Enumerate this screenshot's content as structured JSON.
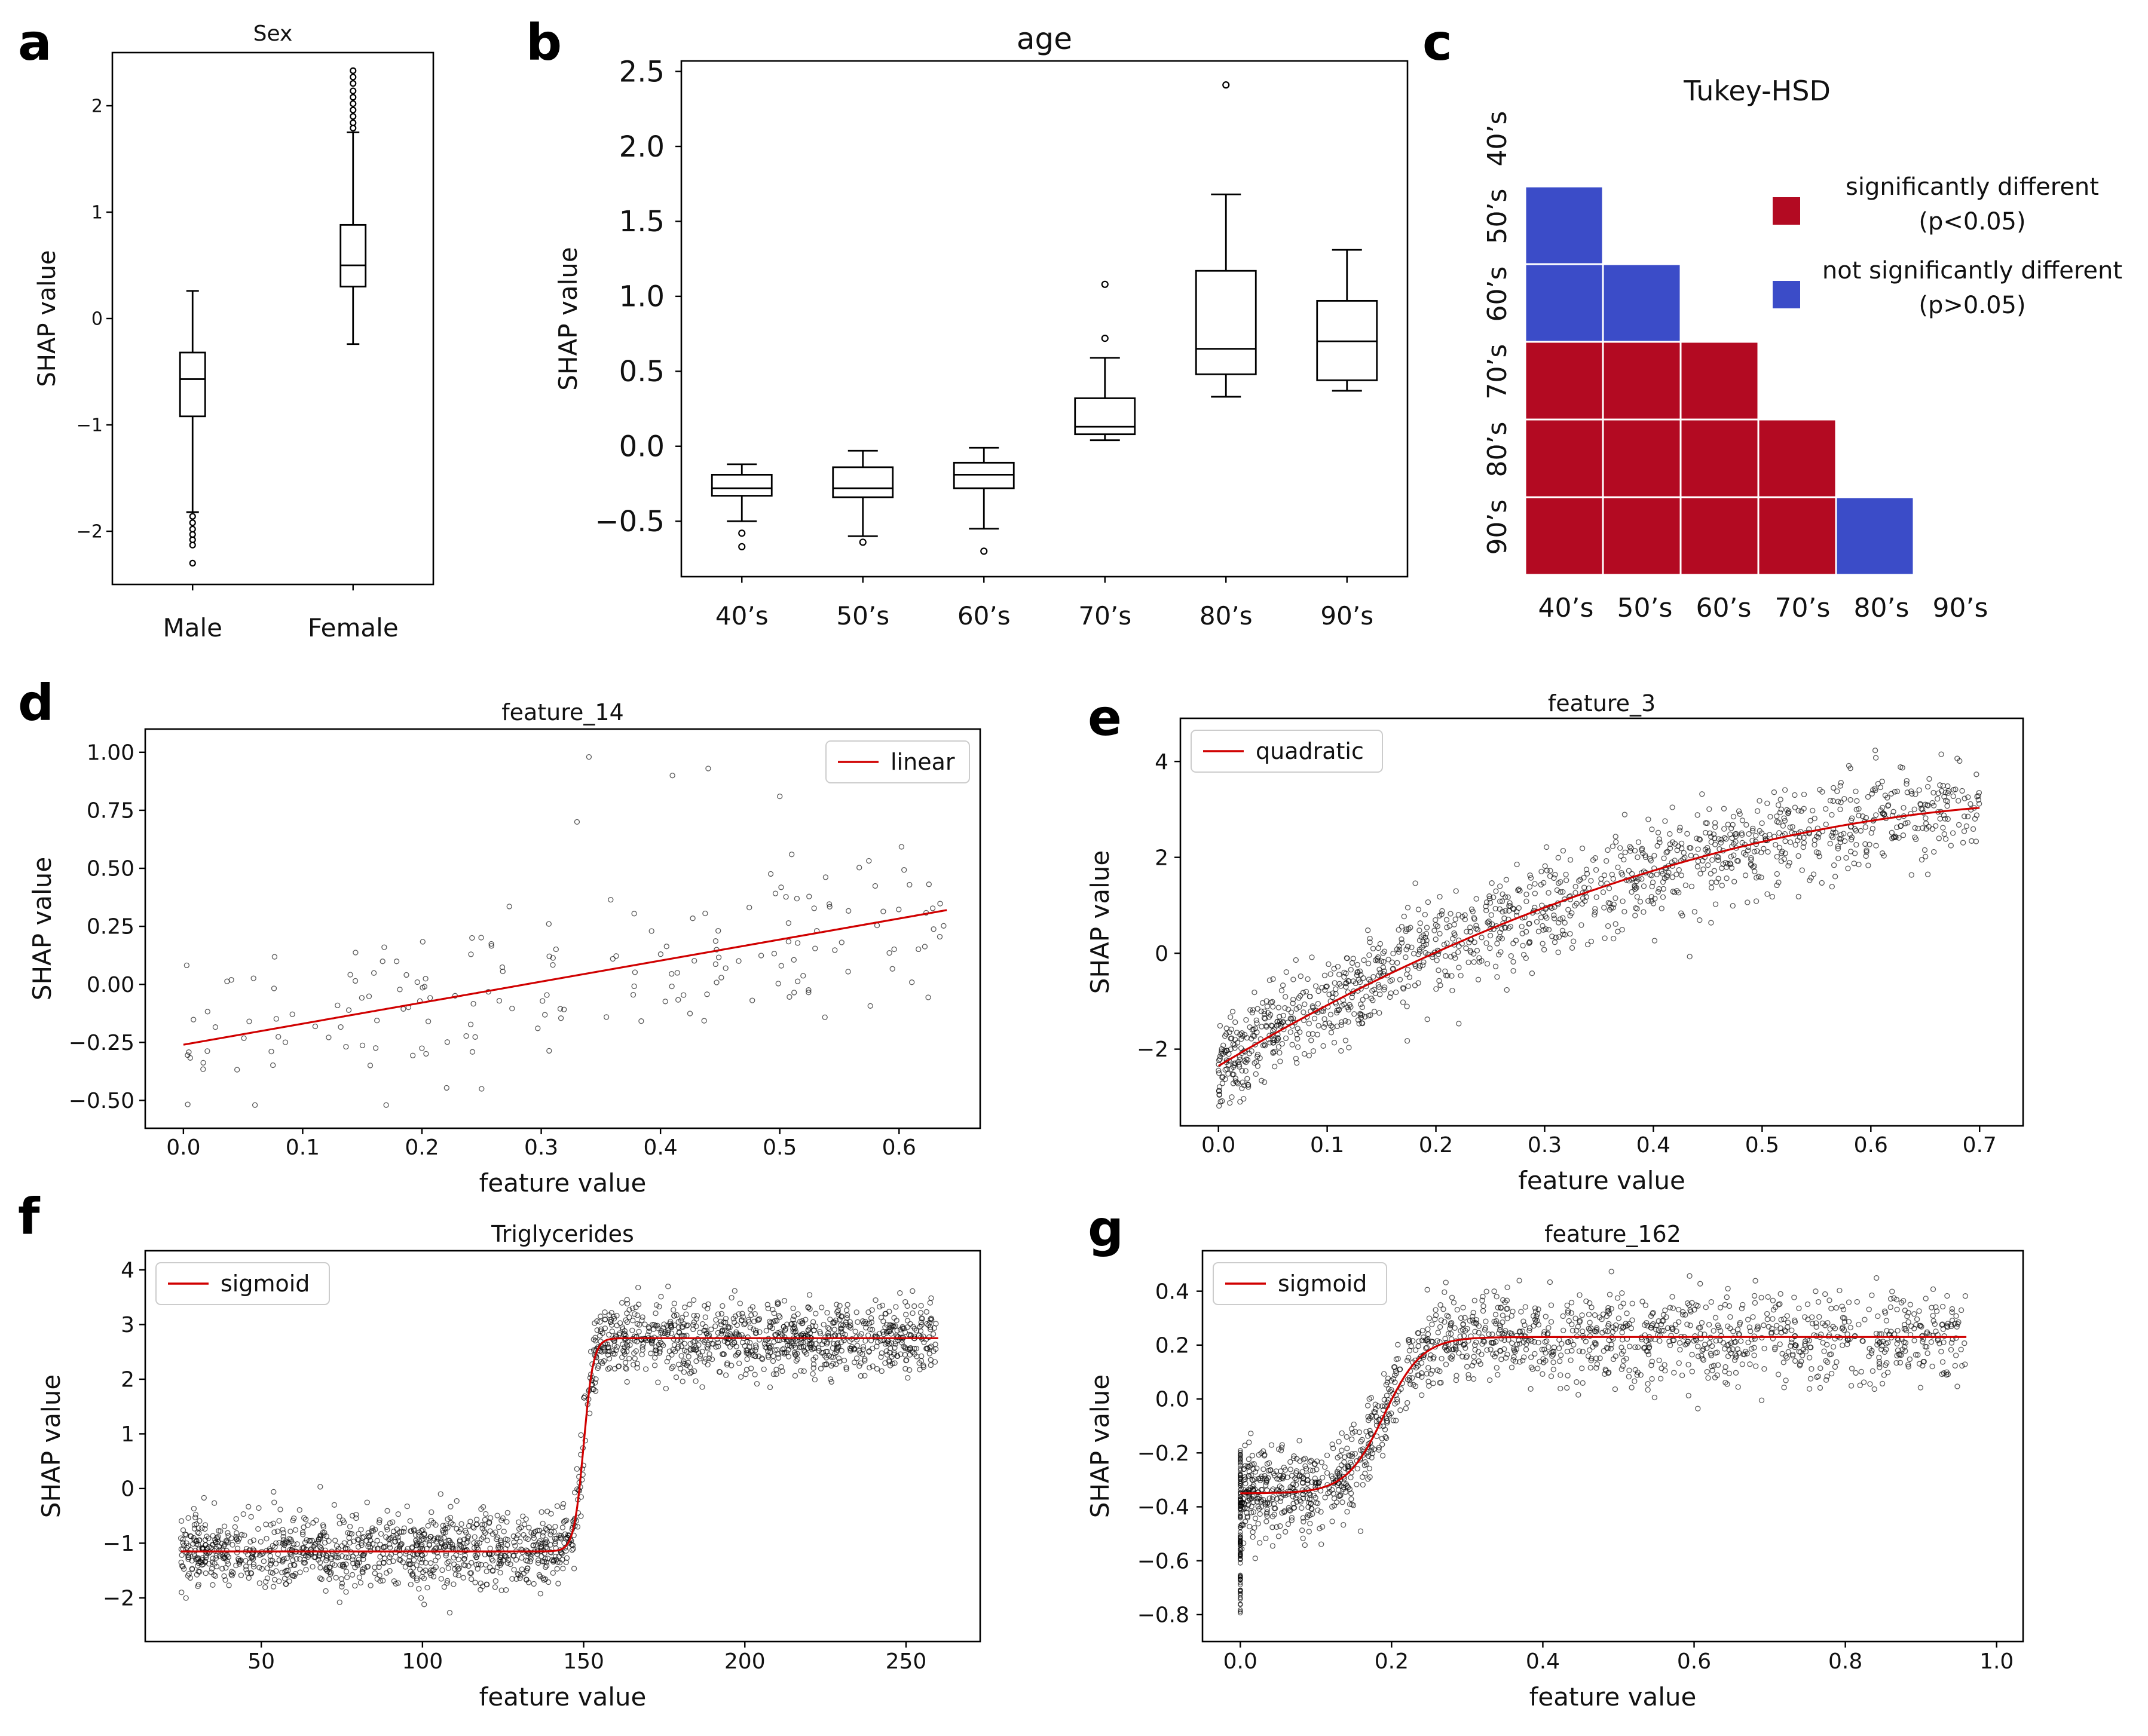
{
  "chart_data": [
    {
      "panel": "a",
      "type": "box",
      "title": "Sex",
      "ylabel": "SHAP value",
      "xlabel": "",
      "categories": [
        "Male",
        "Female"
      ],
      "ylim": [
        -2.5,
        2.5
      ],
      "yticks": [
        "−2",
        "−1",
        "0",
        "1",
        "2"
      ],
      "boxes": [
        {
          "category": "Male",
          "whisker_low": -1.82,
          "q1": -0.92,
          "median": -0.57,
          "q3": -0.32,
          "whisker_high": 0.26,
          "fliers": [
            -1.86,
            -1.92,
            -1.98,
            -2.03,
            -2.08,
            -2.13,
            -2.3
          ]
        },
        {
          "category": "Female",
          "whisker_low": -0.24,
          "q1": 0.3,
          "median": 0.5,
          "q3": 0.88,
          "whisker_high": 1.75,
          "fliers": [
            1.79,
            1.84,
            1.9,
            1.96,
            2.02,
            2.08,
            2.14,
            2.21,
            2.27,
            2.33
          ]
        }
      ]
    },
    {
      "panel": "b",
      "type": "box",
      "title": "age",
      "ylabel": "SHAP value",
      "xlabel": "",
      "categories": [
        "40’s",
        "50’s",
        "60’s",
        "70’s",
        "80’s",
        "90’s"
      ],
      "ylim": [
        -0.87,
        2.57
      ],
      "yticks": [
        "−0.5",
        "0.0",
        "0.5",
        "1.0",
        "1.5",
        "2.0",
        "2.5"
      ],
      "boxes": [
        {
          "category": "40’s",
          "whisker_low": -0.5,
          "q1": -0.33,
          "median": -0.28,
          "q3": -0.19,
          "whisker_high": -0.12,
          "fliers": [
            -0.58,
            -0.67
          ]
        },
        {
          "category": "50’s",
          "whisker_low": -0.6,
          "q1": -0.34,
          "median": -0.28,
          "q3": -0.14,
          "whisker_high": -0.03,
          "fliers": [
            -0.64
          ]
        },
        {
          "category": "60’s",
          "whisker_low": -0.55,
          "q1": -0.28,
          "median": -0.19,
          "q3": -0.11,
          "whisker_high": -0.01,
          "fliers": [
            -0.7
          ]
        },
        {
          "category": "70’s",
          "whisker_low": 0.04,
          "q1": 0.08,
          "median": 0.13,
          "q3": 0.32,
          "whisker_high": 0.59,
          "fliers": [
            0.72,
            1.08
          ]
        },
        {
          "category": "80’s",
          "whisker_low": 0.33,
          "q1": 0.48,
          "median": 0.65,
          "q3": 1.17,
          "whisker_high": 1.68,
          "fliers": [
            2.41
          ]
        },
        {
          "category": "90’s",
          "whisker_low": 0.37,
          "q1": 0.44,
          "median": 0.7,
          "q3": 0.97,
          "whisker_high": 1.31,
          "fliers": []
        }
      ]
    },
    {
      "panel": "c",
      "type": "heatmap",
      "title": "Tukey-HSD",
      "rows": [
        "40’s",
        "50’s",
        "60’s",
        "70’s",
        "80’s",
        "90’s"
      ],
      "columns": [
        "40’s",
        "50’s",
        "60’s",
        "70’s",
        "80’s",
        "90’s"
      ],
      "cells": [
        {
          "row": "50’s",
          "col": "40’s",
          "significant": false
        },
        {
          "row": "60’s",
          "col": "40’s",
          "significant": false
        },
        {
          "row": "60’s",
          "col": "50’s",
          "significant": false
        },
        {
          "row": "70’s",
          "col": "40’s",
          "significant": true
        },
        {
          "row": "70’s",
          "col": "50’s",
          "significant": true
        },
        {
          "row": "70’s",
          "col": "60’s",
          "significant": true
        },
        {
          "row": "80’s",
          "col": "40’s",
          "significant": true
        },
        {
          "row": "80’s",
          "col": "50’s",
          "significant": true
        },
        {
          "row": "80’s",
          "col": "60’s",
          "significant": true
        },
        {
          "row": "80’s",
          "col": "70’s",
          "significant": true
        },
        {
          "row": "90’s",
          "col": "40’s",
          "significant": true
        },
        {
          "row": "90’s",
          "col": "50’s",
          "significant": true
        },
        {
          "row": "90’s",
          "col": "60’s",
          "significant": true
        },
        {
          "row": "90’s",
          "col": "70’s",
          "significant": true
        },
        {
          "row": "90’s",
          "col": "80’s",
          "significant": false
        }
      ],
      "legend": [
        {
          "label": "significantly different",
          "sub": "(p<0.05)",
          "color": "#b30a22"
        },
        {
          "label": "not significantly different",
          "sub": "(p>0.05)",
          "color": "#3b4cc8"
        }
      ],
      "grid_color": "#ffffff"
    },
    {
      "panel": "d",
      "type": "scatter",
      "title": "feature_14",
      "xlabel": "feature value",
      "ylabel": "SHAP value",
      "xlim": [
        -0.032,
        0.668
      ],
      "ylim": [
        -0.62,
        1.1
      ],
      "xticks": [
        "0.0",
        "0.1",
        "0.2",
        "0.3",
        "0.4",
        "0.5",
        "0.6"
      ],
      "yticks": [
        "−0.50",
        "−0.25",
        "0.00",
        "0.25",
        "0.50",
        "0.75",
        "1.00"
      ],
      "fit": {
        "model": "linear",
        "label": "linear",
        "color": "#d00000",
        "x_range": [
          0.0,
          0.64
        ],
        "slope": 0.906,
        "intercept": -0.26
      },
      "scatter_summary": {
        "n_points": 180,
        "x_range": [
          0.0,
          0.64
        ],
        "noise_sd": 0.16,
        "marker": "open circle, black",
        "extra_points": [
          [
            0.34,
            0.98
          ],
          [
            0.33,
            0.7
          ],
          [
            0.41,
            0.9
          ],
          [
            0.44,
            0.93
          ],
          [
            0.5,
            0.81
          ],
          [
            0.51,
            0.56
          ],
          [
            0.36,
            0.11
          ],
          [
            0.17,
            -0.52
          ],
          [
            0.06,
            -0.52
          ],
          [
            0.25,
            -0.45
          ]
        ]
      }
    },
    {
      "panel": "e",
      "type": "scatter",
      "title": "feature_3",
      "xlabel": "feature value",
      "ylabel": "SHAP value",
      "xlim": [
        -0.035,
        0.74
      ],
      "ylim": [
        -3.6,
        4.9
      ],
      "xticks": [
        "0.0",
        "0.1",
        "0.2",
        "0.3",
        "0.4",
        "0.5",
        "0.6",
        "0.7"
      ],
      "yticks": [
        "−2",
        "0",
        "2",
        "4"
      ],
      "fit": {
        "model": "quadratic",
        "label": "quadratic",
        "color": "#d00000",
        "x_range": [
          0.0,
          0.7
        ],
        "coefficients": [
          -2.35,
          13.5,
          -8.3
        ]
      },
      "scatter_summary": {
        "n_points": 1300,
        "x_range": [
          0.0,
          0.7
        ],
        "noise_sd": 0.5,
        "marker": "open circle, black"
      }
    },
    {
      "panel": "f",
      "type": "scatter",
      "title": "Triglycerides",
      "xlabel": "feature value",
      "ylabel": "SHAP value",
      "xlim": [
        14,
        273
      ],
      "ylim": [
        -2.8,
        4.35
      ],
      "xticks": [
        "50",
        "100",
        "150",
        "200",
        "250"
      ],
      "yticks": [
        "−2",
        "−1",
        "0",
        "1",
        "2",
        "3",
        "4"
      ],
      "fit": {
        "model": "sigmoid",
        "label": "sigmoid",
        "color": "#d00000",
        "x_range": [
          25,
          260
        ],
        "low": -1.15,
        "high": 2.75,
        "midpoint": 150,
        "scale": 1.5
      },
      "scatter_summary": {
        "n_points": 2000,
        "x_range": [
          25,
          260
        ],
        "noise_sd": 0.33,
        "marker": "open circle, black"
      }
    },
    {
      "panel": "g",
      "type": "scatter",
      "title": "feature_162",
      "xlabel": "feature value",
      "ylabel": "SHAP value",
      "xlim": [
        -0.05,
        1.035
      ],
      "ylim": [
        -0.9,
        0.55
      ],
      "xticks": [
        "0.0",
        "0.2",
        "0.4",
        "0.6",
        "0.8",
        "1.0"
      ],
      "yticks": [
        "−0.8",
        "−0.6",
        "−0.4",
        "−0.2",
        "0.0",
        "0.2",
        "0.4"
      ],
      "fit": {
        "model": "sigmoid",
        "label": "sigmoid",
        "color": "#d00000",
        "x_range": [
          0.0,
          0.96
        ],
        "low": -0.35,
        "high": 0.23,
        "midpoint": 0.19,
        "scale": 0.025
      },
      "scatter_summary": {
        "n_points": 1500,
        "x_range": [
          0.0,
          0.96
        ],
        "noise_sd": 0.08,
        "marker": "open circle, black",
        "zero_column": {
          "x": 0.0,
          "y_range": [
            -0.8,
            -0.17
          ],
          "n_points": 110
        }
      }
    }
  ]
}
